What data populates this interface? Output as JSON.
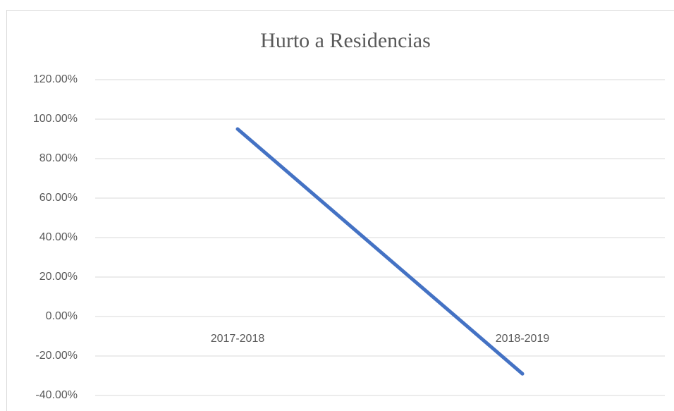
{
  "chart_data": {
    "type": "line",
    "title": "Hurto a Residencias",
    "categories": [
      "2017-2018",
      "2018-2019"
    ],
    "series": [
      {
        "name": "Hurto a Residencias",
        "color": "#4472c4",
        "values": [
          95,
          -29
        ]
      }
    ],
    "ylim": [
      -40,
      120
    ],
    "yticks": [
      {
        "value": -40,
        "label": "-40.00%"
      },
      {
        "value": -20,
        "label": "-20.00%"
      },
      {
        "value": 0,
        "label": "0.00%"
      },
      {
        "value": 20,
        "label": "20.00%"
      },
      {
        "value": 40,
        "label": "40.00%"
      },
      {
        "value": 60,
        "label": "60.00%"
      },
      {
        "value": 80,
        "label": "80.00%"
      },
      {
        "value": 100,
        "label": "100.00%"
      },
      {
        "value": 120,
        "label": "120.00%"
      }
    ],
    "grid": true
  }
}
